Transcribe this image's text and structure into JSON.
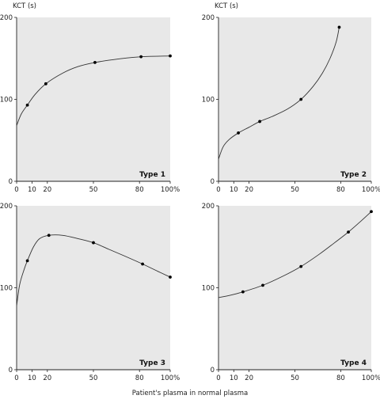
{
  "figure": {
    "shared_xlabel": "Patient's plasma in normal plasma"
  },
  "chart_data": [
    {
      "type": "line",
      "type_label": "Type 1",
      "ylabel": "KCT (s)",
      "xlim": [
        0,
        100
      ],
      "ylim": [
        0,
        200
      ],
      "x_ticks": [
        "0",
        "10",
        "20",
        "50",
        "80",
        "100%"
      ],
      "x_tick_values": [
        0,
        10,
        20,
        50,
        80,
        100
      ],
      "y_ticks": [
        "0",
        "100",
        "200"
      ],
      "y_tick_values": [
        0,
        100,
        200
      ],
      "points": [
        {
          "x": 7,
          "y": 93
        },
        {
          "x": 19,
          "y": 119
        },
        {
          "x": 51,
          "y": 145
        },
        {
          "x": 81,
          "y": 152
        },
        {
          "x": 100,
          "y": 153
        }
      ],
      "curve": [
        {
          "x": 0,
          "y": 68
        },
        {
          "x": 3,
          "y": 82
        },
        {
          "x": 7,
          "y": 93
        },
        {
          "x": 12,
          "y": 106
        },
        {
          "x": 19,
          "y": 119
        },
        {
          "x": 30,
          "y": 132
        },
        {
          "x": 40,
          "y": 140
        },
        {
          "x": 51,
          "y": 145
        },
        {
          "x": 65,
          "y": 149
        },
        {
          "x": 81,
          "y": 152
        },
        {
          "x": 100,
          "y": 153
        }
      ]
    },
    {
      "type": "line",
      "type_label": "Type 2",
      "ylabel": "KCT (s)",
      "xlim": [
        0,
        100
      ],
      "ylim": [
        0,
        200
      ],
      "x_ticks": [
        "0",
        "10",
        "20",
        "50",
        "80",
        "100%"
      ],
      "x_tick_values": [
        0,
        10,
        20,
        50,
        80,
        100
      ],
      "y_ticks": [
        "0",
        "100",
        "200"
      ],
      "y_tick_values": [
        0,
        100,
        200
      ],
      "points": [
        {
          "x": 13,
          "y": 59
        },
        {
          "x": 27,
          "y": 73
        },
        {
          "x": 54,
          "y": 100
        },
        {
          "x": 79,
          "y": 188
        }
      ],
      "curve": [
        {
          "x": 0,
          "y": 27
        },
        {
          "x": 3,
          "y": 42
        },
        {
          "x": 7,
          "y": 51
        },
        {
          "x": 13,
          "y": 59
        },
        {
          "x": 20,
          "y": 66
        },
        {
          "x": 27,
          "y": 73
        },
        {
          "x": 35,
          "y": 79
        },
        {
          "x": 45,
          "y": 88
        },
        {
          "x": 54,
          "y": 100
        },
        {
          "x": 62,
          "y": 116
        },
        {
          "x": 68,
          "y": 132
        },
        {
          "x": 73,
          "y": 150
        },
        {
          "x": 77,
          "y": 170
        },
        {
          "x": 79,
          "y": 188
        }
      ]
    },
    {
      "type": "line",
      "type_label": "Type 3",
      "ylabel": "",
      "xlim": [
        0,
        100
      ],
      "ylim": [
        0,
        200
      ],
      "x_ticks": [
        "0",
        "10",
        "20",
        "50",
        "80",
        "100%"
      ],
      "x_tick_values": [
        0,
        10,
        20,
        50,
        80,
        100
      ],
      "y_ticks": [
        "0",
        "100",
        "200"
      ],
      "y_tick_values": [
        0,
        100,
        200
      ],
      "points": [
        {
          "x": 7,
          "y": 133
        },
        {
          "x": 21,
          "y": 164
        },
        {
          "x": 50,
          "y": 155
        },
        {
          "x": 82,
          "y": 129
        },
        {
          "x": 100,
          "y": 113
        }
      ],
      "curve": [
        {
          "x": 0,
          "y": 78
        },
        {
          "x": 2,
          "y": 104
        },
        {
          "x": 5,
          "y": 123
        },
        {
          "x": 7,
          "y": 133
        },
        {
          "x": 11,
          "y": 150
        },
        {
          "x": 15,
          "y": 160
        },
        {
          "x": 21,
          "y": 164
        },
        {
          "x": 30,
          "y": 164
        },
        {
          "x": 40,
          "y": 160
        },
        {
          "x": 50,
          "y": 155
        },
        {
          "x": 60,
          "y": 147
        },
        {
          "x": 70,
          "y": 139
        },
        {
          "x": 82,
          "y": 129
        },
        {
          "x": 92,
          "y": 120
        },
        {
          "x": 100,
          "y": 113
        }
      ]
    },
    {
      "type": "line",
      "type_label": "Type 4",
      "ylabel": "",
      "xlim": [
        0,
        100
      ],
      "ylim": [
        0,
        200
      ],
      "x_ticks": [
        "0",
        "10",
        "20",
        "50",
        "80",
        "100%"
      ],
      "x_tick_values": [
        0,
        10,
        20,
        50,
        80,
        100
      ],
      "y_ticks": [
        "0",
        "100",
        "200"
      ],
      "y_tick_values": [
        0,
        100,
        200
      ],
      "points": [
        {
          "x": 16,
          "y": 95
        },
        {
          "x": 29,
          "y": 103
        },
        {
          "x": 54,
          "y": 126
        },
        {
          "x": 85,
          "y": 168
        },
        {
          "x": 100,
          "y": 193
        }
      ],
      "curve": [
        {
          "x": 0,
          "y": 88
        },
        {
          "x": 8,
          "y": 91
        },
        {
          "x": 16,
          "y": 95
        },
        {
          "x": 29,
          "y": 103
        },
        {
          "x": 42,
          "y": 114
        },
        {
          "x": 54,
          "y": 126
        },
        {
          "x": 66,
          "y": 141
        },
        {
          "x": 76,
          "y": 155
        },
        {
          "x": 85,
          "y": 168
        },
        {
          "x": 93,
          "y": 181
        },
        {
          "x": 100,
          "y": 193
        }
      ]
    }
  ]
}
